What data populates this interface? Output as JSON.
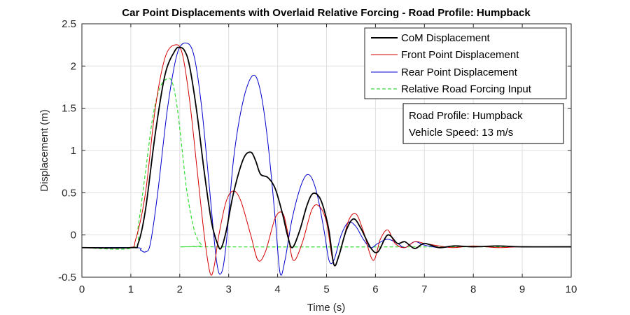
{
  "chart_data": {
    "type": "line",
    "title": "Car Point Displacements with Overlaid Relative Forcing - Road Profile: Humpback",
    "xlabel": "Time (s)",
    "ylabel": "Displacement (m)",
    "xlim": [
      0,
      10
    ],
    "ylim": [
      -0.5,
      2.5
    ],
    "xticks": [
      0,
      1,
      2,
      3,
      4,
      5,
      6,
      7,
      8,
      9,
      10
    ],
    "yticks": [
      -0.5,
      0,
      0.5,
      1,
      1.5,
      2,
      2.5
    ],
    "xtick_labels": [
      "0",
      "1",
      "2",
      "3",
      "4",
      "5",
      "6",
      "7",
      "8",
      "9",
      "10"
    ],
    "ytick_labels": [
      "-0.5",
      "0",
      "0.5",
      "1",
      "1.5",
      "2",
      "2.5"
    ],
    "grid": true,
    "legend_position": "top-right",
    "annotation": [
      "Road Profile: Humpback",
      "Vehicle Speed: 13 m/s"
    ],
    "series": [
      {
        "name": "CoM Displacement",
        "color": "#000000",
        "style": "solid",
        "x": [
          0,
          1.0,
          1.15,
          1.3,
          1.5,
          1.7,
          1.9,
          2.0,
          2.1,
          2.2,
          2.35,
          2.5,
          2.65,
          2.78,
          2.85,
          2.95,
          3.1,
          3.3,
          3.45,
          3.55,
          3.65,
          3.8,
          3.95,
          4.1,
          4.2,
          4.3,
          4.45,
          4.6,
          4.72,
          4.85,
          4.95,
          5.05,
          5.15,
          5.25,
          5.4,
          5.55,
          5.7,
          5.9,
          6.05,
          6.25,
          6.45,
          6.6,
          6.8,
          7.0,
          7.3,
          7.6,
          8.0,
          8.5,
          9.0,
          10.0
        ],
        "y": [
          -0.15,
          -0.15,
          -0.1,
          0.3,
          1.2,
          1.9,
          2.18,
          2.22,
          2.18,
          2.0,
          1.45,
          0.75,
          0.15,
          -0.12,
          -0.15,
          0.05,
          0.5,
          0.9,
          0.98,
          0.88,
          0.72,
          0.68,
          0.55,
          0.25,
          0.0,
          -0.15,
          0.05,
          0.35,
          0.49,
          0.45,
          0.3,
          0.05,
          -0.35,
          -0.25,
          0.05,
          0.19,
          0.08,
          -0.15,
          -0.2,
          0.0,
          -0.1,
          -0.08,
          -0.16,
          -0.1,
          -0.15,
          -0.13,
          -0.14,
          -0.13,
          -0.14,
          -0.14
        ]
      },
      {
        "name": "Front Point Displacement",
        "color": "#d40000",
        "style": "solid",
        "x": [
          0,
          0.95,
          1.1,
          1.3,
          1.5,
          1.7,
          1.9,
          2.05,
          2.2,
          2.35,
          2.5,
          2.62,
          2.7,
          2.8,
          2.95,
          3.1,
          3.25,
          3.45,
          3.6,
          3.75,
          3.95,
          4.1,
          4.2,
          4.32,
          4.5,
          4.7,
          4.85,
          5.0,
          5.15,
          5.3,
          5.45,
          5.6,
          5.75,
          5.95,
          6.1,
          6.25,
          6.4,
          6.6,
          6.8,
          7.0,
          7.3,
          7.6,
          8.0,
          8.5,
          9.0,
          10.0
        ],
        "y": [
          -0.15,
          -0.15,
          -0.05,
          0.5,
          1.5,
          2.1,
          2.25,
          2.15,
          1.6,
          0.8,
          0.0,
          -0.45,
          -0.38,
          0.0,
          0.4,
          0.52,
          0.4,
          0.0,
          -0.3,
          -0.2,
          0.2,
          0.26,
          0.05,
          -0.3,
          -0.1,
          0.3,
          0.34,
          0.15,
          -0.35,
          -0.15,
          0.17,
          0.25,
          0.05,
          -0.3,
          -0.05,
          0.06,
          -0.1,
          -0.15,
          -0.08,
          -0.1,
          -0.13,
          -0.15,
          -0.13,
          -0.15,
          -0.14,
          -0.14
        ]
      },
      {
        "name": "Rear Point Displacement",
        "color": "#0000cc",
        "style": "solid",
        "x": [
          0,
          1.1,
          1.2,
          1.3,
          1.4,
          1.55,
          1.75,
          1.95,
          2.15,
          2.3,
          2.45,
          2.6,
          2.75,
          2.85,
          2.95,
          3.1,
          3.3,
          3.5,
          3.65,
          3.8,
          3.95,
          4.05,
          4.15,
          4.3,
          4.5,
          4.65,
          4.8,
          4.95,
          5.05,
          5.15,
          5.3,
          5.45,
          5.6,
          5.75,
          5.9,
          6.05,
          6.25,
          6.45,
          6.6,
          6.8,
          7.0,
          7.3,
          7.6,
          8.0,
          8.5,
          9.0,
          10.0
        ],
        "y": [
          -0.15,
          -0.15,
          -0.18,
          -0.2,
          -0.1,
          0.5,
          1.5,
          2.15,
          2.27,
          2.1,
          1.5,
          0.6,
          -0.3,
          -0.45,
          -0.1,
          0.9,
          1.6,
          1.89,
          1.7,
          1.1,
          0.2,
          -0.45,
          -0.3,
          0.2,
          0.62,
          0.71,
          0.5,
          0.05,
          -0.3,
          -0.3,
          0.0,
          0.15,
          0.1,
          -0.05,
          -0.15,
          -0.1,
          -0.05,
          -0.1,
          -0.15,
          -0.08,
          -0.12,
          -0.15,
          -0.13,
          -0.14,
          -0.13,
          -0.14,
          -0.14
        ]
      },
      {
        "name": "Relative Road Forcing Input",
        "color": "#33dd33",
        "style": "dashed",
        "x": [
          0,
          1.05,
          1.15,
          1.3,
          1.45,
          1.6,
          1.75,
          1.85,
          1.95,
          2.05,
          2.15,
          2.3,
          2.45,
          2.6,
          10.0
        ],
        "y": [
          -0.15,
          -0.15,
          0.1,
          0.75,
          1.4,
          1.75,
          1.85,
          1.8,
          1.5,
          1.0,
          0.5,
          0.05,
          -0.12,
          -0.14,
          -0.14
        ]
      }
    ]
  }
}
